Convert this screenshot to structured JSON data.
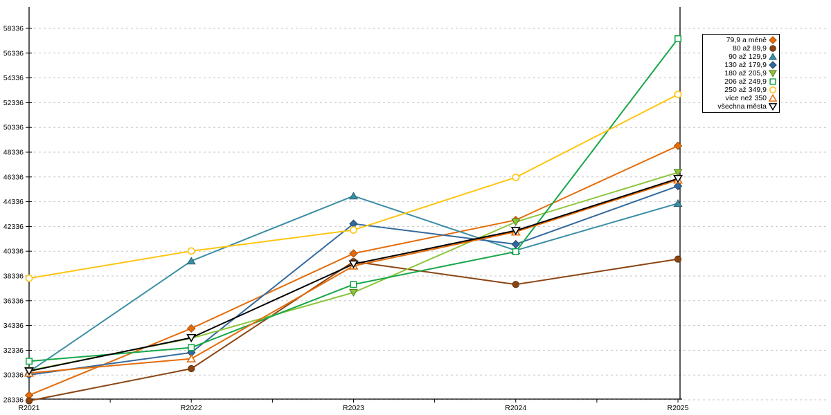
{
  "chart_data": {
    "type": "line",
    "title": "",
    "xlabel": "",
    "ylabel": "",
    "categories": [
      "R2021",
      "R2022",
      "R2023",
      "R2024",
      "R2025"
    ],
    "y_tick_values": [
      28336,
      30336,
      32336,
      34336,
      36336,
      38336,
      40336,
      42336,
      44336,
      46336,
      48336,
      50336,
      52336,
      54336,
      56336,
      58336
    ],
    "ylim": [
      28336,
      58336
    ],
    "grid": "horizontal-dashed",
    "legend_position": "top-right",
    "series": [
      {
        "name": "79,9 a méně",
        "color": "#E46C0A",
        "border": "#A34E05",
        "marker": "diamond",
        "open": false,
        "values": [
          28700,
          34100,
          40150,
          42850,
          48850
        ]
      },
      {
        "name": "80 až 89,9",
        "color": "#8B4513",
        "border": "#5E2F0D",
        "marker": "circle",
        "open": false,
        "values": [
          28250,
          30850,
          39500,
          37650,
          39700
        ]
      },
      {
        "name": "90 až 129,9",
        "color": "#3B8EA5",
        "border": "#276273",
        "marker": "triangle-up",
        "open": false,
        "values": [
          30600,
          39550,
          44800,
          40400,
          44200
        ]
      },
      {
        "name": "130 až 179,9",
        "color": "#34699D",
        "border": "#1F4468",
        "marker": "diamond",
        "open": false,
        "values": [
          30350,
          32150,
          42550,
          40900,
          45600
        ]
      },
      {
        "name": "180 až 205,9",
        "color": "#8CC63C",
        "border": "#567A1F",
        "marker": "triangle-down",
        "open": false,
        "values": [
          30700,
          33300,
          37000,
          42700,
          46700
        ]
      },
      {
        "name": "206 až 249,9",
        "color": "#17A74A",
        "border": "#17A74A",
        "marker": "square",
        "open": true,
        "values": [
          31450,
          32550,
          37650,
          40300,
          57500
        ]
      },
      {
        "name": "250 až 349,9",
        "color": "#FFC412",
        "border": "#FFC412",
        "marker": "circle",
        "open": true,
        "values": [
          38150,
          40350,
          42050,
          46300,
          53000
        ]
      },
      {
        "name": "více než 350",
        "color": "#E46C0A",
        "border": "#E46C0A",
        "marker": "triangle-up",
        "open": true,
        "values": [
          30500,
          31650,
          39150,
          41900,
          46100
        ]
      },
      {
        "name": "všechna města",
        "color": "#000000",
        "border": "#000000",
        "marker": "triangle-down",
        "open": true,
        "values": [
          30650,
          33350,
          39300,
          42000,
          46200
        ]
      }
    ]
  },
  "colors": {
    "gridline": "#C6C6C6",
    "axis": "#000000",
    "background": "#FFFFFF"
  }
}
